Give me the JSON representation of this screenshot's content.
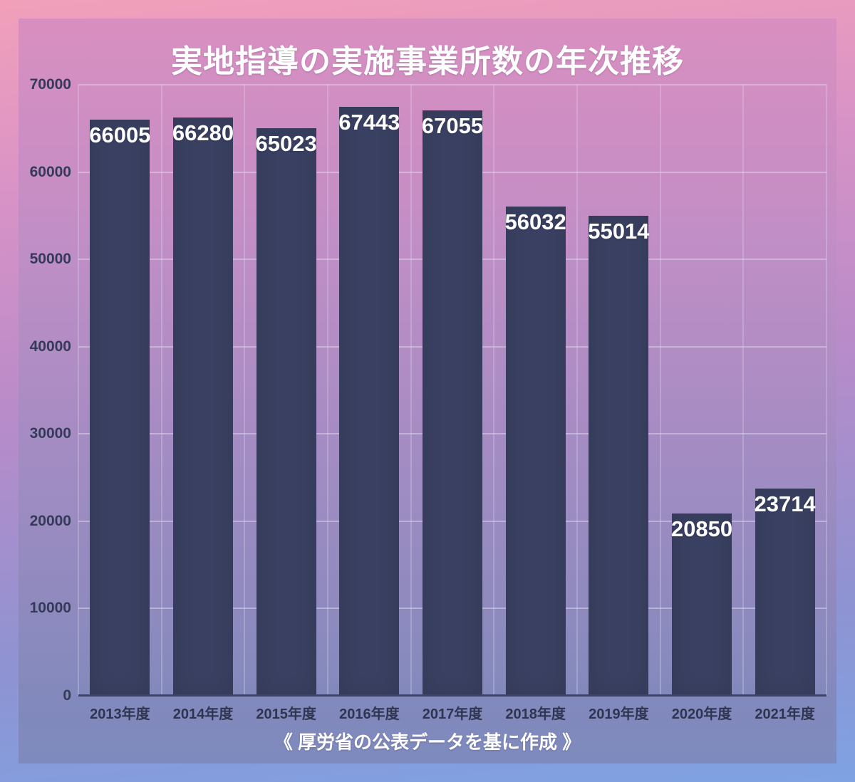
{
  "chart_data": {
    "type": "bar",
    "title": "実地指導の実施事業所数の年次推移",
    "caption": "《 厚労省の公表データを基に作成 》",
    "categories": [
      "2013年度",
      "2014年度",
      "2015年度",
      "2016年度",
      "2017年度",
      "2018年度",
      "2019年度",
      "2020年度",
      "2021年度"
    ],
    "values": [
      66005,
      66280,
      65023,
      67443,
      67055,
      56032,
      55014,
      20850,
      23714
    ],
    "xlabel": "",
    "ylabel": "",
    "ylim": [
      0,
      70000
    ],
    "yticks": [
      0,
      10000,
      20000,
      30000,
      40000,
      50000,
      60000,
      70000
    ],
    "grid": true,
    "legend": "none",
    "colors": {
      "bar": "#3a4061",
      "value_label": "#ffffff",
      "axis_text": "#343a59",
      "title_text": "#ffffff",
      "background_top": "#d98fc0",
      "background_bottom": "#7e8abd"
    }
  }
}
